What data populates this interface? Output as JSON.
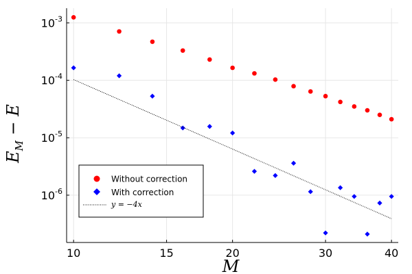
{
  "chart_data": {
    "type": "scatter",
    "xscale": "log",
    "yscale": "log",
    "xlabel": "M",
    "ylabel": "E_M − E",
    "ylabel_parts": {
      "main": "E",
      "sub": "M",
      "rest": " − E"
    },
    "xlim": [
      9.7,
      41.2
    ],
    "ylim": [
      1.5e-07,
      0.0018
    ],
    "xticks": [
      {
        "value": 10,
        "label": "10"
      },
      {
        "value": 15,
        "label": "15"
      },
      {
        "value": 20,
        "label": "20"
      },
      {
        "value": 30,
        "label": "30"
      },
      {
        "value": 40,
        "label": "40"
      }
    ],
    "yticks": [
      {
        "value": 1e-06,
        "base": "10",
        "exp": "-6"
      },
      {
        "value": 1e-05,
        "base": "10",
        "exp": "-5"
      },
      {
        "value": 0.0001,
        "base": "10",
        "exp": "-4"
      },
      {
        "value": 0.001,
        "base": "10",
        "exp": "-3"
      }
    ],
    "grid": true,
    "legend_position": "bottom-left",
    "series": [
      {
        "name": "Without correction",
        "marker": "circle",
        "color": "#ff0000",
        "x": [
          10,
          12.2,
          14.1,
          16.1,
          18.1,
          20,
          22,
          24.1,
          26.1,
          28.1,
          30,
          32,
          34,
          36,
          38,
          40
        ],
        "y": [
          0.00125,
          0.00071,
          0.00047,
          0.00033,
          0.00023,
          0.000165,
          0.000132,
          0.000103,
          7.9e-05,
          6.4e-05,
          5.3e-05,
          4.2e-05,
          3.5e-05,
          3e-05,
          2.5e-05,
          2.1e-05
        ]
      },
      {
        "name": "With correction",
        "marker": "diamond",
        "color": "#0000ff",
        "x": [
          10,
          12.2,
          14.1,
          16.1,
          18.1,
          20,
          22,
          24.1,
          26.1,
          28.1,
          30,
          32,
          34,
          36,
          38,
          40
        ],
        "y": [
          0.000165,
          0.00012,
          5.3e-05,
          1.48e-05,
          1.57e-05,
          1.21e-05,
          2.6e-06,
          2.2e-06,
          3.6e-06,
          1.15e-06,
          2.2e-07,
          1.35e-06,
          9.5e-07,
          2.1e-07,
          7.3e-07,
          9.5e-07
        ]
      },
      {
        "name": "y = −4x",
        "marker": "none",
        "line_style": "dotted",
        "color": "#000000",
        "x": [
          10,
          40
        ],
        "y": [
          0.000103,
          3.9e-07
        ]
      }
    ]
  }
}
